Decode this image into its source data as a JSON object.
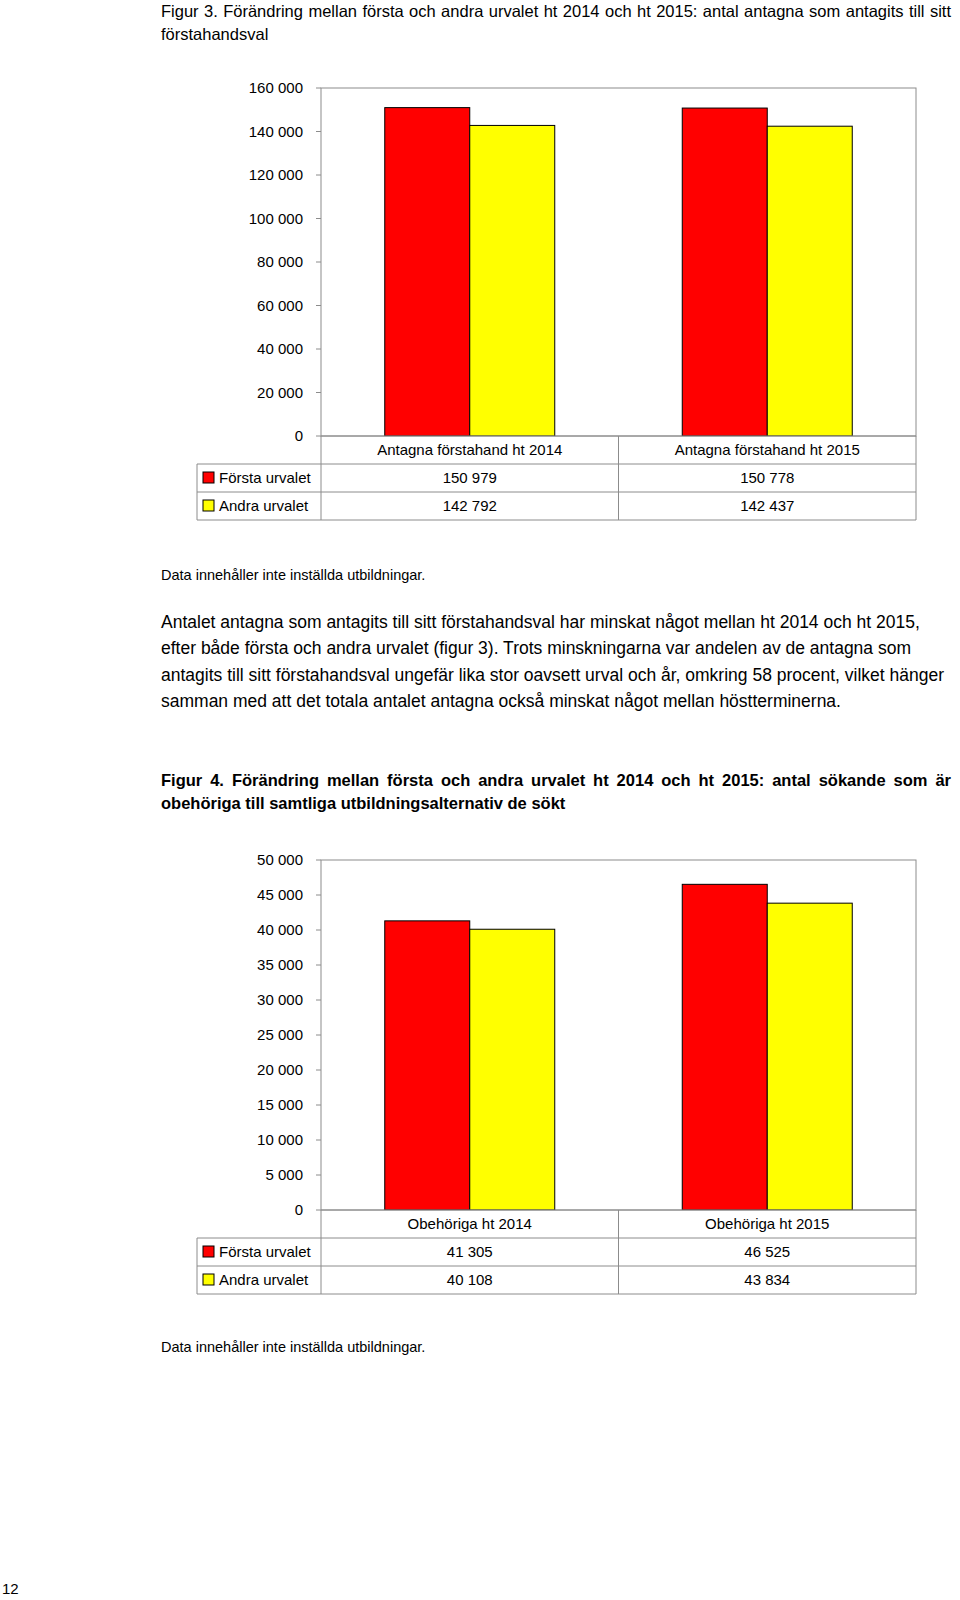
{
  "chart_data": [
    {
      "type": "bar",
      "title": "Figur 3. Förändring mellan första och andra urvalet ht 2014 och ht 2015: antal antagna som antagits till sitt förstahandsval",
      "categories": [
        "Antagna förstahand ht 2014",
        "Antagna förstahand ht 2015"
      ],
      "series": [
        {
          "name": "Första urvalet",
          "color": "#ff0000",
          "values": [
            150979,
            150778
          ],
          "value_labels": [
            "150 979",
            "150 778"
          ]
        },
        {
          "name": "Andra urvalet",
          "color": "#ffff00",
          "values": [
            142792,
            142437
          ],
          "value_labels": [
            "142 792",
            "142 437"
          ]
        }
      ],
      "ylim": [
        0,
        160000
      ],
      "yticks": [
        0,
        {
          "value": 20000,
          "label": "20 000"
        },
        {
          "value": 40000,
          "label": "40 000"
        },
        {
          "value": 60000,
          "label": "60 000"
        },
        {
          "value": 80000,
          "label": "80 000"
        },
        {
          "value": 100000,
          "label": "100 000"
        },
        {
          "value": 120000,
          "label": "120 000"
        },
        {
          "value": 140000,
          "label": "140 000"
        },
        {
          "value": 160000,
          "label": "160 000"
        }
      ],
      "grid": false,
      "annotations": [
        "Data innehåller inte inställda utbildningar."
      ]
    },
    {
      "type": "bar",
      "title": "Figur 4. Förändring mellan första och andra urvalet ht 2014 och ht 2015: antal sökande som är obehöriga till samtliga utbildningsalternativ de sökt",
      "categories": [
        "Obehöriga ht 2014",
        "Obehöriga ht 2015"
      ],
      "series": [
        {
          "name": "Första urvalet",
          "color": "#ff0000",
          "values": [
            41305,
            46525
          ],
          "value_labels": [
            "41 305",
            "46 525"
          ]
        },
        {
          "name": "Andra urvalet",
          "color": "#ffff00",
          "values": [
            40108,
            43834
          ],
          "value_labels": [
            "40 108",
            "43 834"
          ]
        }
      ],
      "ylim": [
        0,
        50000
      ],
      "yticks": [
        0,
        {
          "value": 5000,
          "label": "5 000"
        },
        {
          "value": 10000,
          "label": "10 000"
        },
        {
          "value": 15000,
          "label": "15 000"
        },
        {
          "value": 20000,
          "label": "20 000"
        },
        {
          "value": 25000,
          "label": "25 000"
        },
        {
          "value": 30000,
          "label": "30 000"
        },
        {
          "value": 35000,
          "label": "35 000"
        },
        {
          "value": 40000,
          "label": "40 000"
        },
        {
          "value": 45000,
          "label": "45 000"
        },
        {
          "value": 50000,
          "label": "50 000"
        }
      ],
      "grid": false,
      "annotations": [
        "Data innehåller inte inställda utbildningar."
      ]
    }
  ],
  "document": {
    "paragraph": "Antalet antagna som antagits till sitt förstahandsval har minskat något mellan ht 2014 och ht 2015, efter både första och andra urvalet (figur 3). Trots minskningarna var andelen av de antagna som antagits till sitt förstahandsval ungefär lika stor oavsett urval och år, omkring 58 procent, vilket hänger samman med att det totala antalet antagna också minskat något mellan höstterminerna.",
    "page_number": "12"
  }
}
